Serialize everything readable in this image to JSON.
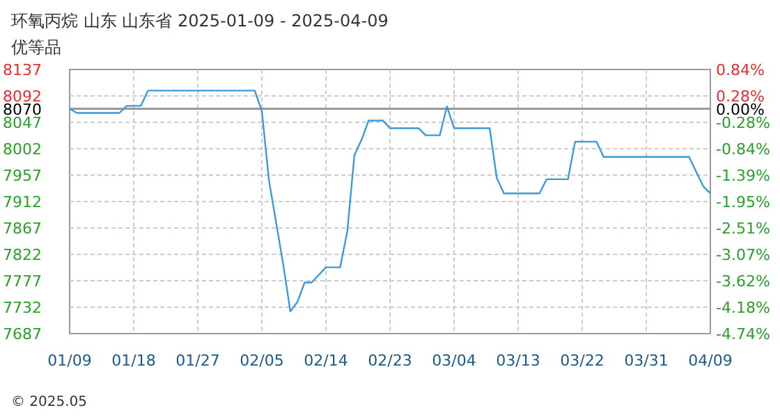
{
  "chart_data": {
    "type": "line",
    "title": "环氧丙烷 山东 山东省 2025-01-09 - 2025-04-09",
    "subtitle": "优等品",
    "annotations": [
      "© 2025.05"
    ],
    "x": [
      "2025-01-09",
      "2025-01-10",
      "2025-01-16",
      "2025-01-17",
      "2025-01-19",
      "2025-01-20",
      "2025-02-04",
      "2025-02-05",
      "2025-02-06",
      "2025-02-08",
      "2025-02-09",
      "2025-02-10",
      "2025-02-11",
      "2025-02-12",
      "2025-02-14",
      "2025-02-16",
      "2025-02-17",
      "2025-02-18",
      "2025-02-19",
      "2025-02-20",
      "2025-02-22",
      "2025-02-23",
      "2025-02-27",
      "2025-02-28",
      "2025-03-02",
      "2025-03-03",
      "2025-03-04",
      "2025-03-09",
      "2025-03-10",
      "2025-03-11",
      "2025-03-16",
      "2025-03-17",
      "2025-03-20",
      "2025-03-21",
      "2025-03-24",
      "2025-03-25",
      "2025-04-06",
      "2025-04-08",
      "2025-04-09"
    ],
    "series": [
      {
        "color": "#3a9ad9",
        "values": [
          8070,
          8063,
          8063,
          8075,
          8075,
          8101,
          8101,
          8066,
          7948,
          7805,
          7725,
          7741,
          7774,
          7774,
          7800,
          7800,
          7861,
          7991,
          8017,
          8050,
          8050,
          8037,
          8037,
          8025,
          8025,
          8074,
          8037,
          8037,
          7952,
          7926,
          7926,
          7950,
          7950,
          8014,
          8014,
          7988,
          7988,
          7938,
          7926
        ]
      }
    ],
    "xlim": [
      "2025-01-09",
      "2025-04-09"
    ],
    "xticks": [
      {
        "value": "2025-01-09",
        "label": "01/09"
      },
      {
        "value": "2025-01-18",
        "label": "01/18"
      },
      {
        "value": "2025-01-27",
        "label": "01/27"
      },
      {
        "value": "2025-02-05",
        "label": "02/05"
      },
      {
        "value": "2025-02-14",
        "label": "02/14"
      },
      {
        "value": "2025-02-23",
        "label": "02/23"
      },
      {
        "value": "2025-03-04",
        "label": "03/04"
      },
      {
        "value": "2025-03-13",
        "label": "03/13"
      },
      {
        "value": "2025-03-22",
        "label": "03/22"
      },
      {
        "value": "2025-03-31",
        "label": "03/31"
      },
      {
        "value": "2025-04-09",
        "label": "04/09"
      }
    ],
    "ylim": [
      7687,
      8137
    ],
    "yticks": [
      8137,
      8092,
      8070,
      8047,
      8002,
      7957,
      7912,
      7867,
      7822,
      7777,
      7732,
      7687
    ],
    "y2lim": [
      -4.74,
      0.84
    ],
    "y2ticks": [
      {
        "value": 0.84,
        "label": "0.84%"
      },
      {
        "value": 0.28,
        "label": "0.28%"
      },
      {
        "value": 0,
        "label": "0.00%"
      },
      {
        "value": -0.28,
        "label": "-0.28%"
      },
      {
        "value": -0.84,
        "label": "-0.84%"
      },
      {
        "value": -1.39,
        "label": "-1.39%"
      },
      {
        "value": -1.95,
        "label": "-1.95%"
      },
      {
        "value": -2.51,
        "label": "-2.51%"
      },
      {
        "value": -3.07,
        "label": "-3.07%"
      },
      {
        "value": -3.62,
        "label": "-3.62%"
      },
      {
        "value": -4.18,
        "label": "-4.18%"
      },
      {
        "value": -4.74,
        "label": "-4.74%"
      }
    ],
    "ref_lines": [
      {
        "axis": "y",
        "value": 8070,
        "color": "#999999"
      }
    ],
    "grid": true,
    "marker": "none",
    "line_style": "solid"
  }
}
